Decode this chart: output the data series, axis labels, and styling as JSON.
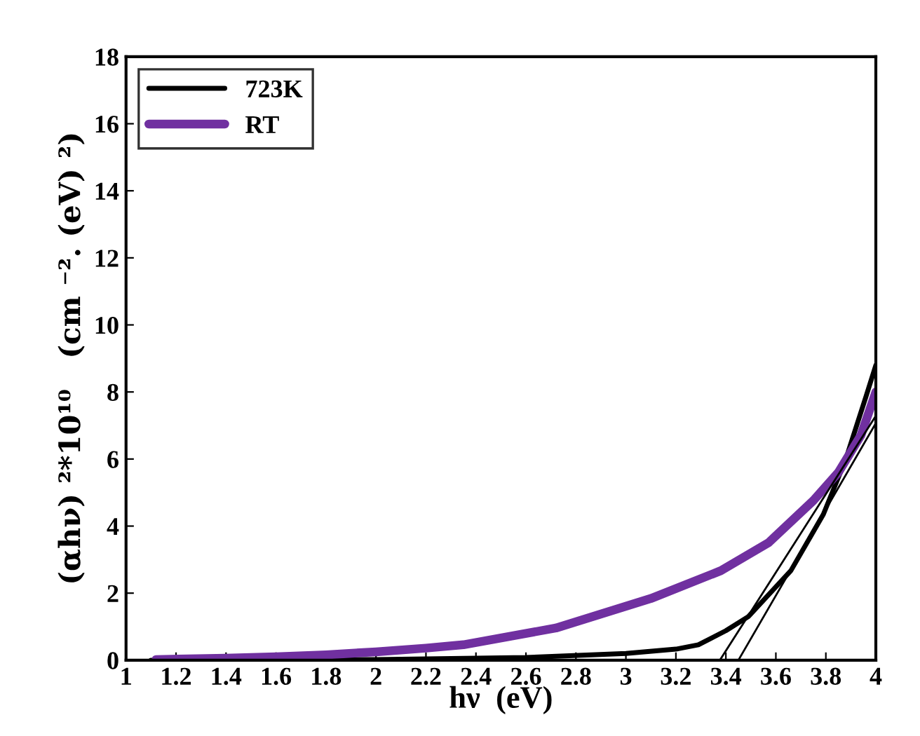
{
  "chart_data": {
    "type": "line",
    "xlabel": "hν  (eV)",
    "ylabel": "(αhν) ²*10¹⁰   (cm ⁻². (eV) ²)",
    "xlim": [
      1,
      4
    ],
    "ylim": [
      0,
      18
    ],
    "xticks": [
      1,
      1.2,
      1.4,
      1.6,
      1.8,
      2,
      2.2,
      2.4,
      2.6,
      2.8,
      3,
      3.2,
      3.4,
      3.6,
      3.8,
      4
    ],
    "yticks": [
      0,
      2,
      4,
      6,
      8,
      10,
      12,
      14,
      16,
      18
    ],
    "grid": false,
    "legend": "top left",
    "marker": "none",
    "line_style": "solid",
    "series": [
      {
        "name": "723K",
        "color": "#000000",
        "x": [
          1.1,
          1.5,
          2.0,
          2.6,
          3.0,
          3.2,
          3.29,
          3.4,
          3.49,
          3.66,
          3.79,
          3.88,
          3.96,
          4.0
        ],
        "values": [
          0,
          0.01,
          0.02,
          0.08,
          0.2,
          0.33,
          0.46,
          0.88,
          1.3,
          2.67,
          4.35,
          6.0,
          7.85,
          8.8
        ]
      },
      {
        "name": "RT",
        "color": "#7030a0",
        "x": [
          1.12,
          1.4,
          1.6,
          1.8,
          2.0,
          2.2,
          2.35,
          2.72,
          3.1,
          3.38,
          3.57,
          3.75,
          3.85,
          3.94,
          4.0
        ],
        "values": [
          0.02,
          0.06,
          0.1,
          0.16,
          0.25,
          0.36,
          0.46,
          0.96,
          1.84,
          2.67,
          3.5,
          4.76,
          5.6,
          6.7,
          8.0
        ]
      },
      {
        "type": "line",
        "color": "#000000",
        "x": [
          3.376,
          4.0
        ],
        "values": [
          0,
          7.29
        ]
      },
      {
        "type": "line",
        "color": "#000000",
        "x": [
          3.45,
          4.0
        ],
        "values": [
          0,
          7.07
        ]
      }
    ]
  }
}
